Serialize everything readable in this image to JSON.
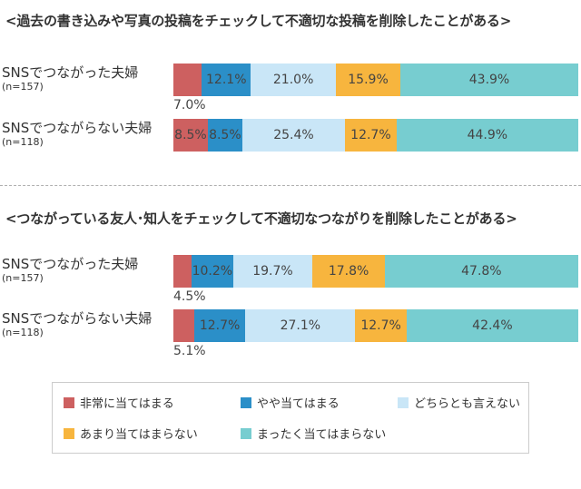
{
  "categories": [
    "非常に当てはまる",
    "やや当てはまる",
    "どちらとも言えない",
    "あまり当てはまらない",
    "まったく当てはまらない"
  ],
  "colors": [
    "#cd6060",
    "#2b8fc8",
    "#c9e6f7",
    "#f7b53e",
    "#77cdd0"
  ],
  "chart_data": [
    {
      "type": "bar",
      "stacked": true,
      "orientation": "horizontal",
      "title": "<過去の書き込みや写真の投稿をチェックして不適切な投稿を削除したことがある>",
      "rows": [
        {
          "label": "SNSでつながった夫婦",
          "n": "(n=157)",
          "values": [
            7.0,
            12.1,
            21.0,
            15.9,
            43.9
          ],
          "value_labels": [
            "7.0%",
            "12.1%",
            "21.0%",
            "15.9%",
            "43.9%"
          ]
        },
        {
          "label": "SNSでつながらない夫婦",
          "n": "(n=118)",
          "values": [
            8.5,
            8.5,
            25.4,
            12.7,
            44.9
          ],
          "value_labels": [
            "8.5%",
            "8.5%",
            "25.4%",
            "12.7%",
            "44.9%"
          ]
        }
      ]
    },
    {
      "type": "bar",
      "stacked": true,
      "orientation": "horizontal",
      "title": "<つながっている友人･知人をチェックして不適切なつながりを削除したことがある>",
      "rows": [
        {
          "label": "SNSでつながった夫婦",
          "n": "(n=157)",
          "values": [
            4.5,
            10.2,
            19.7,
            17.8,
            47.8
          ],
          "value_labels": [
            "4.5%",
            "10.2%",
            "19.7%",
            "17.8%",
            "47.8%"
          ]
        },
        {
          "label": "SNSでつながらない夫婦",
          "n": "(n=118)",
          "values": [
            5.1,
            12.7,
            27.1,
            12.7,
            42.4
          ],
          "value_labels": [
            "5.1%",
            "12.7%",
            "27.1%",
            "12.7%",
            "42.4%"
          ]
        }
      ]
    }
  ]
}
